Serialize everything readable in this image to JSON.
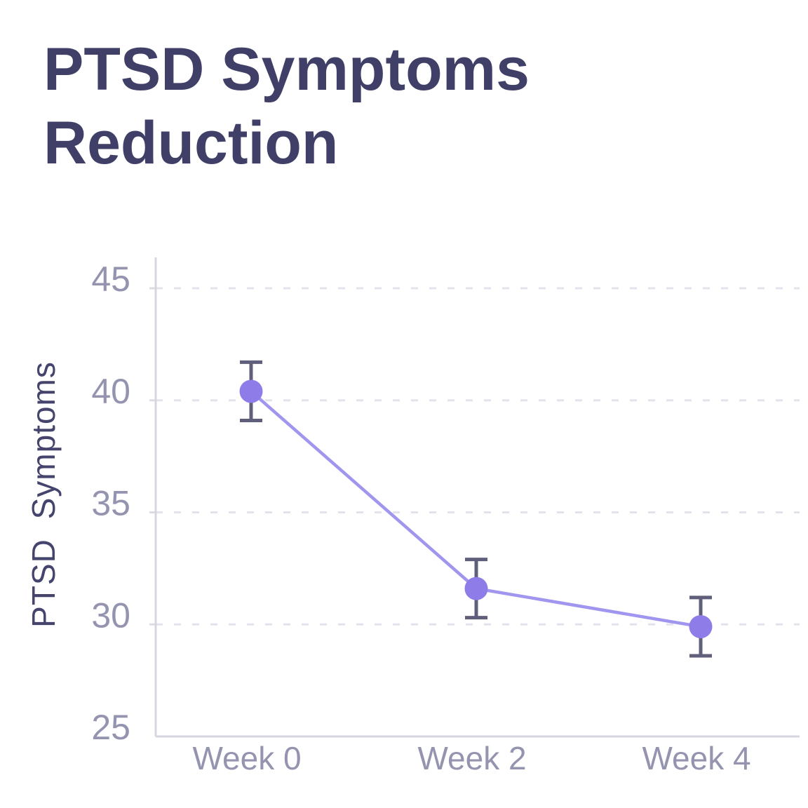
{
  "title": "PTSD Symptoms Reduction",
  "colors": {
    "background": "#ffffff",
    "title": "#3f3f68",
    "axis_label": "#44446d",
    "tick_label": "#9494b0",
    "gridline": "#e3e3ee",
    "axis_line": "#d6d6e0",
    "tick_mark": "#e2dae2",
    "line": "#a095ef",
    "marker": "#8e7ce9",
    "error_bar": "#5f5f7b"
  },
  "chart_data": {
    "type": "line",
    "title": "PTSD Symptoms Reduction",
    "categories": [
      "Week 0",
      "Week 2",
      "Week 4"
    ],
    "series": [
      {
        "name": "PTSD Symptoms",
        "values": [
          40.4,
          31.6,
          29.9
        ],
        "error_bars": [
          1.3,
          1.3,
          1.3
        ]
      }
    ],
    "xlabel": "",
    "ylabel": "PTSD Symptoms",
    "ylim": [
      25,
      45
    ],
    "yticks": [
      25,
      30,
      35,
      40,
      45
    ],
    "grid": "horizontal-dashed",
    "legend_position": "none",
    "marker": "circle",
    "error_bars_shown": true
  }
}
